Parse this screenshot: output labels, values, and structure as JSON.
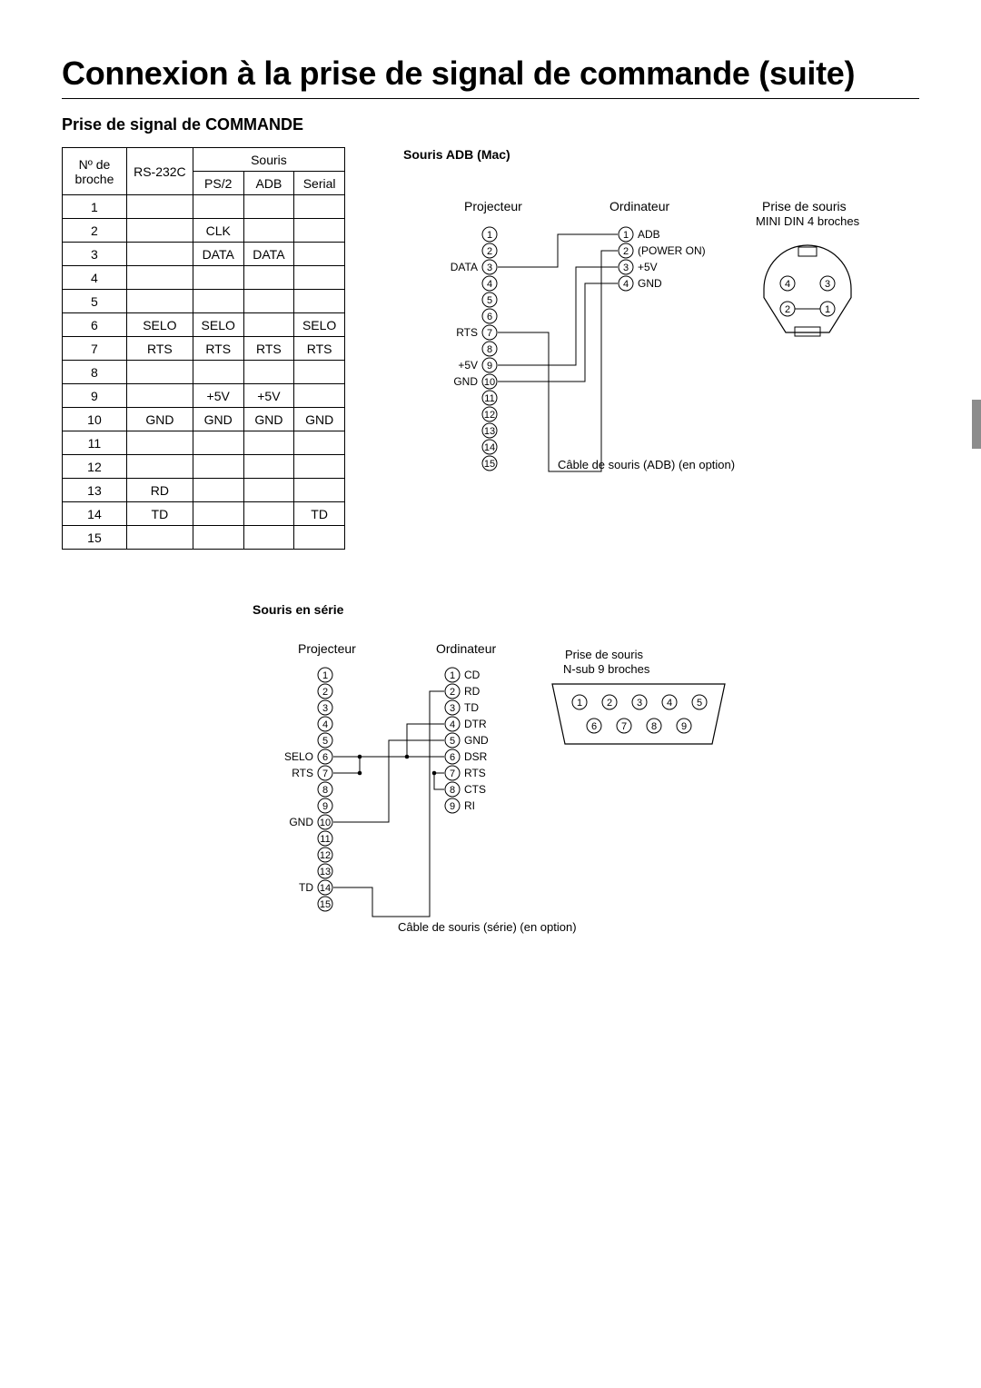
{
  "title": "Connexion à la prise de signal de commande (suite)",
  "subtitle": "Prise de signal de COMMANDE",
  "page_corner": " ",
  "table": {
    "headers": {
      "nb": "Nº de broche",
      "rs232c": "RS-232C",
      "souris": "Souris",
      "ps2": "PS/2",
      "adb": "ADB",
      "serial": "Serial"
    },
    "rows": [
      {
        "n": "1",
        "rs": "",
        "ps2": "",
        "adb": "",
        "ser": ""
      },
      {
        "n": "2",
        "rs": "",
        "ps2": "CLK",
        "adb": "",
        "ser": ""
      },
      {
        "n": "3",
        "rs": "",
        "ps2": "DATA",
        "adb": "DATA",
        "ser": ""
      },
      {
        "n": "4",
        "rs": "",
        "ps2": "",
        "adb": "",
        "ser": ""
      },
      {
        "n": "5",
        "rs": "",
        "ps2": "",
        "adb": "",
        "ser": ""
      },
      {
        "n": "6",
        "rs": "SELO",
        "ps2": "SELO",
        "adb": "",
        "ser": "SELO"
      },
      {
        "n": "7",
        "rs": "RTS",
        "ps2": "RTS",
        "adb": "RTS",
        "ser": "RTS"
      },
      {
        "n": "8",
        "rs": "",
        "ps2": "",
        "adb": "",
        "ser": ""
      },
      {
        "n": "9",
        "rs": "",
        "ps2": "+5V",
        "adb": "+5V",
        "ser": ""
      },
      {
        "n": "10",
        "rs": "GND",
        "ps2": "GND",
        "adb": "GND",
        "ser": "GND"
      },
      {
        "n": "11",
        "rs": "",
        "ps2": "",
        "adb": "",
        "ser": ""
      },
      {
        "n": "12",
        "rs": "",
        "ps2": "",
        "adb": "",
        "ser": ""
      },
      {
        "n": "13",
        "rs": "RD",
        "ps2": "",
        "adb": "",
        "ser": ""
      },
      {
        "n": "14",
        "rs": "TD",
        "ps2": "",
        "adb": "",
        "ser": "TD"
      },
      {
        "n": "15",
        "rs": "",
        "ps2": "",
        "adb": "",
        "ser": ""
      }
    ]
  },
  "adb": {
    "title": "Souris ADB (Mac)",
    "proj_label": "Projecteur",
    "ord_label": "Ordinateur",
    "conn_title": "Prise de souris",
    "conn_sub": "MINI DIN 4 broches",
    "cable_note": "Câble de souris (ADB) (en option)",
    "proj_pins_labels": {
      "3": "DATA",
      "7": "RTS",
      "9": "+5V",
      "10": "GND"
    },
    "ord_pins": [
      {
        "n": "1",
        "lbl": "ADB"
      },
      {
        "n": "2",
        "lbl": "(POWER ON)"
      },
      {
        "n": "3",
        "lbl": "+5V"
      },
      {
        "n": "4",
        "lbl": "GND"
      }
    ],
    "din_labels": [
      "4",
      "3",
      "2",
      "1"
    ],
    "colors": {
      "line": "#000",
      "text": "#000"
    }
  },
  "serial": {
    "title": "Souris en série",
    "proj_label": "Projecteur",
    "ord_label": "Ordinateur",
    "conn_title": "Prise de souris",
    "conn_sub": "N-sub 9 broches",
    "cable_note": "Câble de souris (série) (en option)",
    "proj_pins_labels": {
      "6": "SELO",
      "7": "RTS",
      "10": "GND",
      "14": "TD"
    },
    "ord_pins": [
      {
        "n": "1",
        "lbl": "CD"
      },
      {
        "n": "2",
        "lbl": "RD"
      },
      {
        "n": "3",
        "lbl": "TD"
      },
      {
        "n": "4",
        "lbl": "DTR"
      },
      {
        "n": "5",
        "lbl": "GND"
      },
      {
        "n": "6",
        "lbl": "DSR"
      },
      {
        "n": "7",
        "lbl": "RTS"
      },
      {
        "n": "8",
        "lbl": "CTS"
      },
      {
        "n": "9",
        "lbl": "RI"
      }
    ],
    "dsub_top": [
      "1",
      "2",
      "3",
      "4",
      "5"
    ],
    "dsub_bot": [
      "6",
      "7",
      "8",
      "9"
    ],
    "colors": {
      "line": "#000",
      "text": "#000"
    }
  }
}
